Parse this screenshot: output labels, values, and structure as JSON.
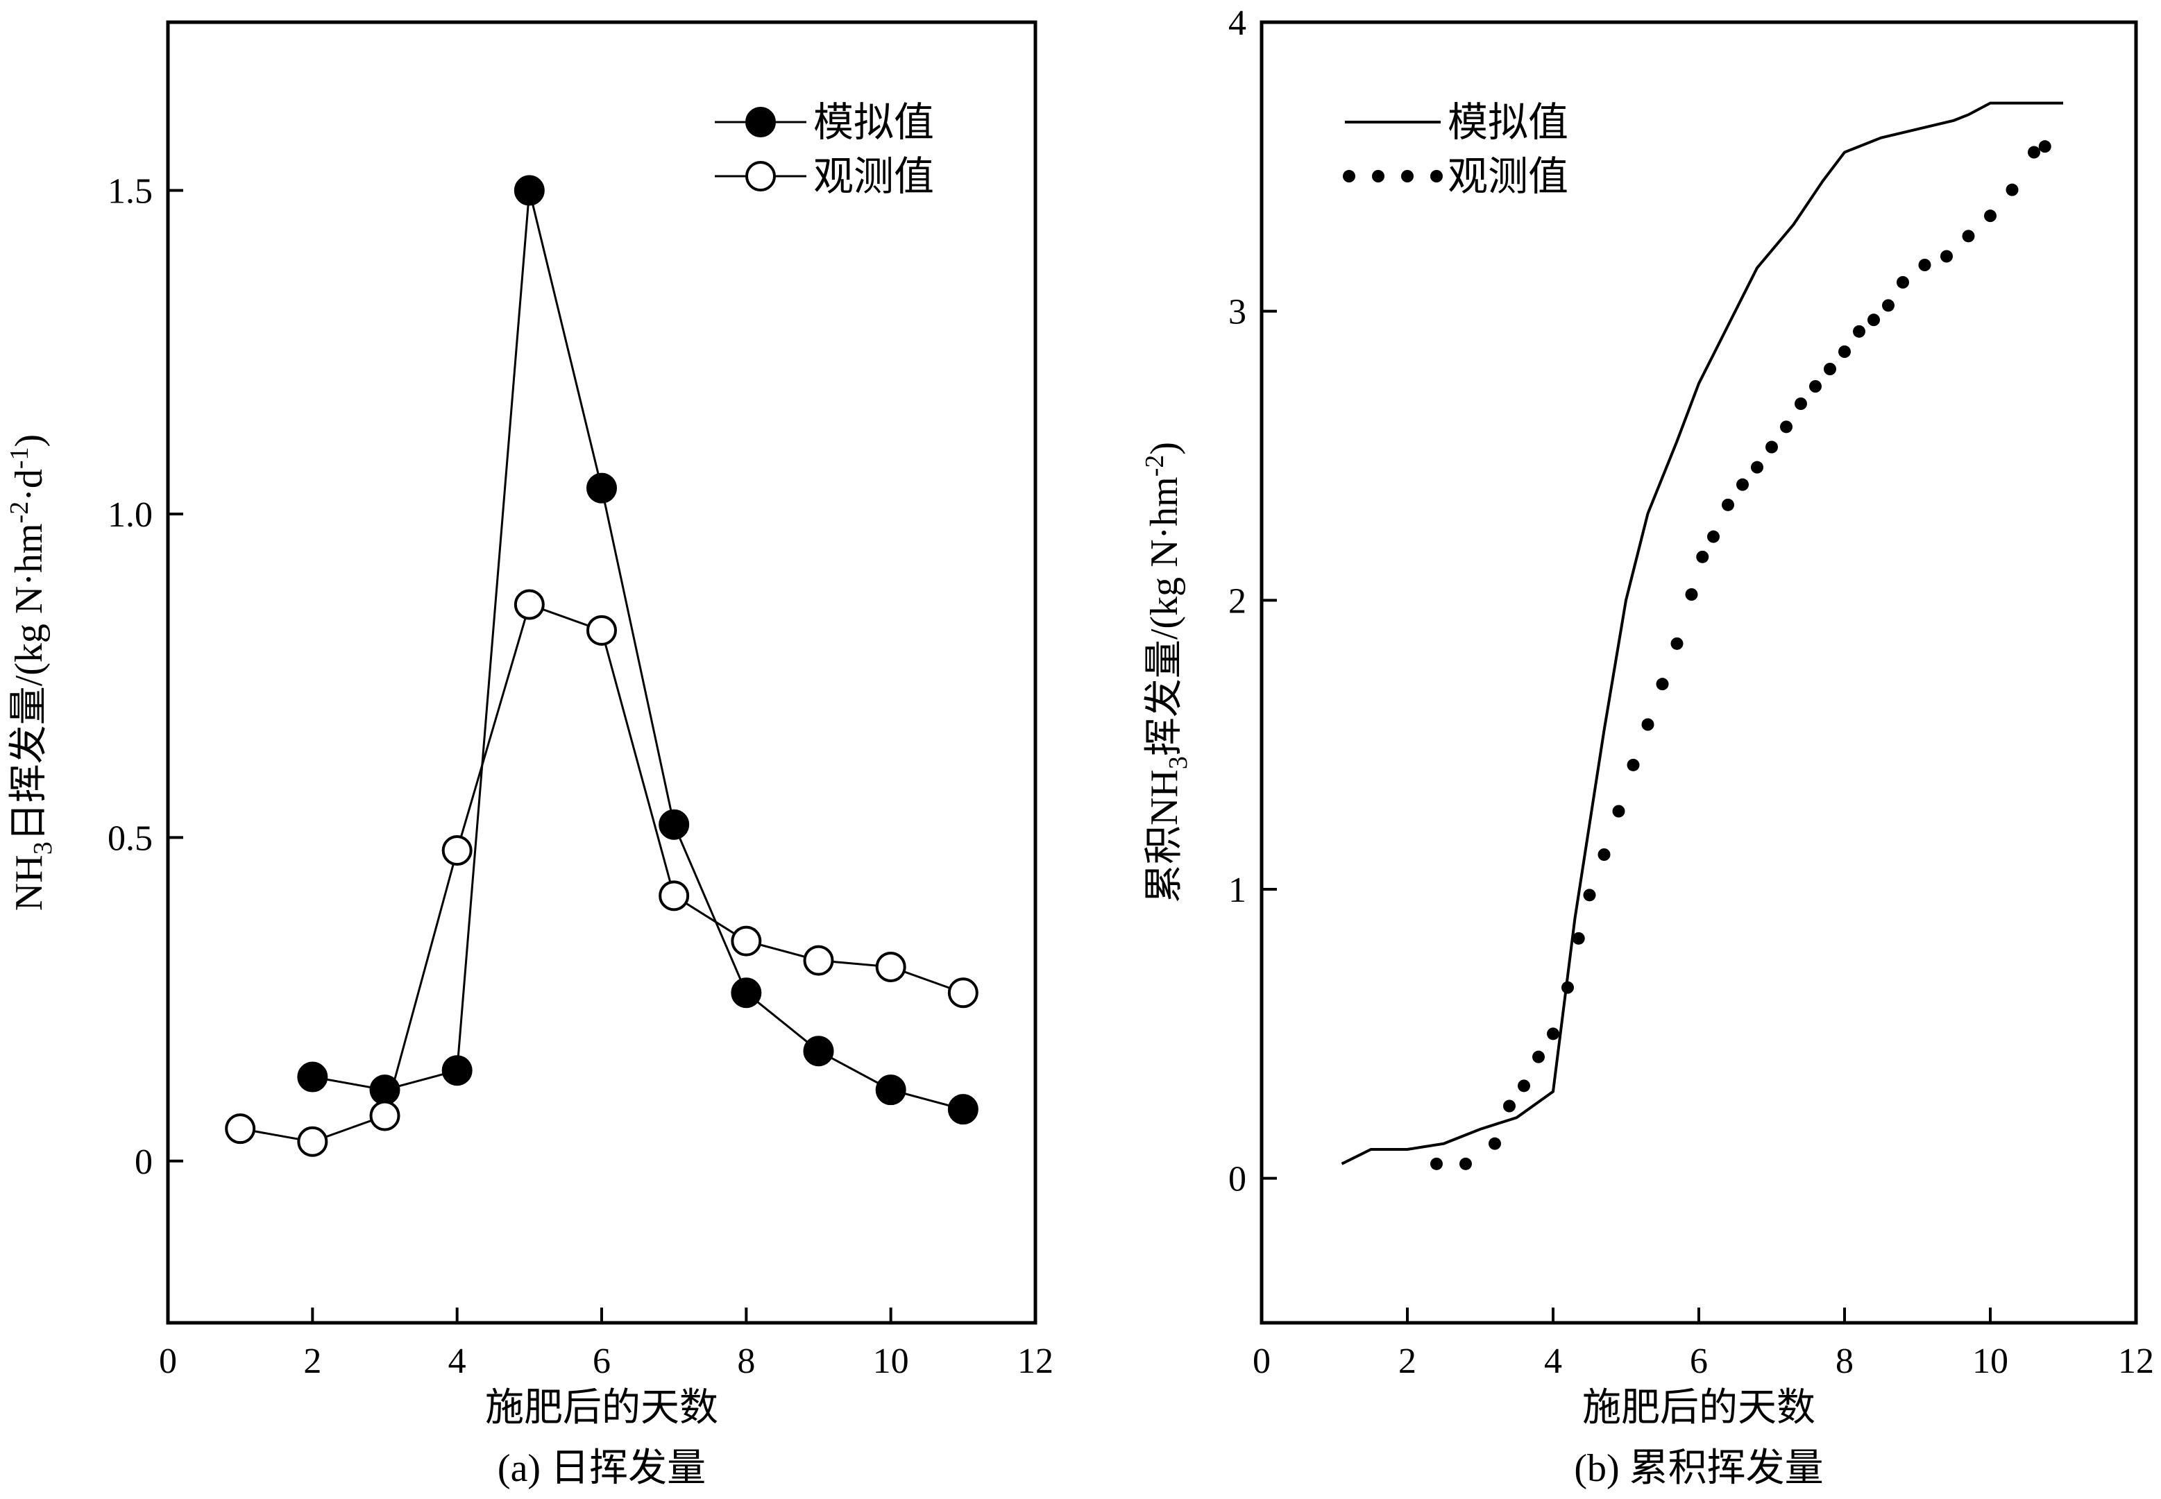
{
  "chart_data": [
    {
      "type": "line",
      "caption": "(a) 日挥发量",
      "xlabel": "施肥后的天数",
      "ylabel": {
        "base": "NH",
        "sub": "3",
        "rest": "日挥发量/(kg N·hm",
        "sup1": "-2",
        "mid": "·d",
        "sup2": "-1",
        "end": ")"
      },
      "xlim": [
        0,
        12
      ],
      "ylim": [
        -0.25,
        1.76
      ],
      "xticks": [
        "0",
        "2",
        "4",
        "6",
        "8",
        "10",
        "12"
      ],
      "xtick_values": [
        0,
        2,
        4,
        6,
        8,
        10,
        12
      ],
      "yticks": [
        "0",
        "0.5",
        "1.0",
        "1.5"
      ],
      "ytick_values": [
        0,
        0.5,
        1.0,
        1.5
      ],
      "legend_position": "top-right",
      "series": [
        {
          "name": "模拟值",
          "marker": "filled-circle",
          "x": [
            2,
            3,
            4,
            5,
            6,
            7,
            8,
            9,
            10,
            11
          ],
          "y": [
            0.13,
            0.11,
            0.14,
            1.5,
            1.04,
            0.52,
            0.26,
            0.17,
            0.11,
            0.08
          ]
        },
        {
          "name": "观测值",
          "marker": "open-circle",
          "x": [
            1,
            2,
            3,
            4,
            5,
            6,
            7,
            8,
            9,
            10,
            11
          ],
          "y": [
            0.05,
            0.03,
            0.07,
            0.48,
            0.86,
            0.82,
            0.41,
            0.34,
            0.31,
            0.3,
            0.26
          ]
        }
      ]
    },
    {
      "type": "line",
      "caption": "(b) 累积挥发量",
      "xlabel": "施肥后的天数",
      "ylabel": {
        "base": "累积NH",
        "sub": "3",
        "rest": "挥发量/(kg N·hm",
        "sup1": "-2",
        "end": ")"
      },
      "xlim": [
        0,
        12
      ],
      "ylim": [
        -0.5,
        4
      ],
      "xticks": [
        "0",
        "2",
        "4",
        "6",
        "8",
        "10",
        "12"
      ],
      "xtick_values": [
        0,
        2,
        4,
        6,
        8,
        10,
        12
      ],
      "yticks": [
        "0",
        "1",
        "2",
        "3",
        "4"
      ],
      "ytick_values": [
        0,
        1,
        2,
        3,
        4
      ],
      "legend_position": "top-left",
      "series": [
        {
          "name": "模拟值",
          "style": "solid-line",
          "x": [
            1.1,
            1.5,
            2.0,
            2.5,
            3.0,
            3.5,
            4.0,
            4.3,
            4.7,
            5.0,
            5.3,
            5.7,
            6.0,
            6.4,
            6.8,
            7.3,
            7.7,
            8.0,
            8.5,
            9.0,
            9.5,
            9.7,
            10.0,
            10.5,
            11.0
          ],
          "y": [
            0.05,
            0.1,
            0.1,
            0.12,
            0.17,
            0.21,
            0.3,
            0.9,
            1.55,
            2.0,
            2.3,
            2.55,
            2.75,
            2.95,
            3.15,
            3.3,
            3.45,
            3.55,
            3.6,
            3.63,
            3.66,
            3.68,
            3.72,
            3.72,
            3.72
          ]
        },
        {
          "name": "观测值",
          "style": "dots",
          "x": [
            2.4,
            2.8,
            3.2,
            3.4,
            3.6,
            3.8,
            4.0,
            4.2,
            4.35,
            4.5,
            4.7,
            4.9,
            5.1,
            5.3,
            5.5,
            5.7,
            5.9,
            6.05,
            6.2,
            6.4,
            6.6,
            6.8,
            7.0,
            7.2,
            7.4,
            7.6,
            7.8,
            8.0,
            8.2,
            8.4,
            8.6,
            8.8,
            9.1,
            9.4,
            9.7,
            10.0,
            10.3,
            10.6,
            10.75
          ],
          "y": [
            0.05,
            0.05,
            0.12,
            0.25,
            0.32,
            0.42,
            0.5,
            0.66,
            0.83,
            0.98,
            1.12,
            1.27,
            1.43,
            1.57,
            1.71,
            1.85,
            2.02,
            2.15,
            2.22,
            2.33,
            2.4,
            2.46,
            2.53,
            2.6,
            2.68,
            2.74,
            2.8,
            2.86,
            2.93,
            2.97,
            3.02,
            3.1,
            3.16,
            3.19,
            3.26,
            3.33,
            3.42,
            3.55,
            3.57
          ]
        }
      ]
    }
  ]
}
